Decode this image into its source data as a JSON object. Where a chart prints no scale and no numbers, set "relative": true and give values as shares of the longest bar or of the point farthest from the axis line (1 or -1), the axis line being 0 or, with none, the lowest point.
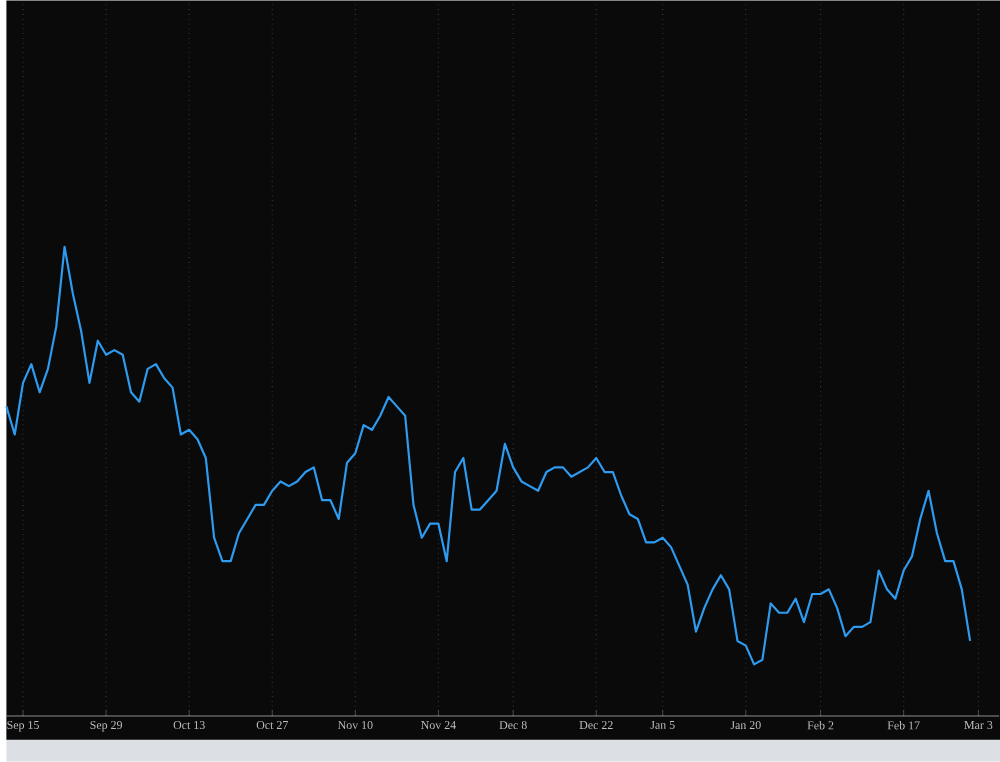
{
  "chart_data": {
    "type": "line",
    "relative": true,
    "color": "#2e9bf0",
    "grid": true,
    "categories": [
      null,
      null,
      "Sep 15",
      null,
      null,
      null,
      null,
      null,
      null,
      null,
      null,
      null,
      "Sep 29",
      null,
      null,
      null,
      null,
      null,
      null,
      null,
      null,
      null,
      "Oct 13",
      null,
      null,
      null,
      null,
      null,
      null,
      null,
      null,
      null,
      "Oct 27",
      null,
      null,
      null,
      null,
      null,
      null,
      null,
      null,
      null,
      "Nov 10",
      null,
      null,
      null,
      null,
      null,
      null,
      null,
      null,
      null,
      "Nov 24",
      null,
      null,
      null,
      null,
      null,
      null,
      null,
      null,
      "Dec 8",
      null,
      null,
      null,
      null,
      null,
      null,
      null,
      null,
      null,
      "Dec 22",
      null,
      null,
      null,
      null,
      null,
      null,
      null,
      "Jan 5",
      null,
      null,
      null,
      null,
      null,
      null,
      null,
      null,
      null,
      "Jan 20",
      null,
      null,
      null,
      null,
      null,
      null,
      null,
      null,
      "Feb 2",
      null,
      null,
      null,
      null,
      null,
      null,
      null,
      null,
      null,
      "Feb 17",
      null,
      null,
      null,
      null,
      null,
      null,
      null,
      null,
      "Mar 3"
    ],
    "values": [
      0.66,
      0.6,
      0.71,
      0.75,
      0.69,
      0.74,
      0.83,
      1,
      0.9,
      0.82,
      0.71,
      0.8,
      0.77,
      0.78,
      0.77,
      0.69,
      0.67,
      0.74,
      0.75,
      0.72,
      0.7,
      0.6,
      0.61,
      0.59,
      0.55,
      0.38,
      0.33,
      0.33,
      0.39,
      0.42,
      0.45,
      0.45,
      0.48,
      0.5,
      0.49,
      0.5,
      0.52,
      0.53,
      0.46,
      0.46,
      0.42,
      0.54,
      0.56,
      0.62,
      0.61,
      0.64,
      0.68,
      0.66,
      0.64,
      0.45,
      0.38,
      0.41,
      0.41,
      0.33,
      0.52,
      0.55,
      0.44,
      0.44,
      0.46,
      0.48,
      0.58,
      0.53,
      0.5,
      0.49,
      0.48,
      0.52,
      0.53,
      0.53,
      0.51,
      0.52,
      0.53,
      0.55,
      0.52,
      0.52,
      0.47,
      0.43,
      0.42,
      0.37,
      0.37,
      0.38,
      0.36,
      0.32,
      0.28,
      0.18,
      0.23,
      0.27,
      0.3,
      0.27,
      0.16,
      0.15,
      0.11,
      0.12,
      0.24,
      0.22,
      0.22,
      0.25,
      0.2,
      0.26,
      0.26,
      0.27,
      0.23,
      0.17,
      0.19,
      0.19,
      0.2,
      0.31,
      0.27,
      0.25,
      0.31,
      0.34,
      0.42,
      0.48,
      0.39,
      0.33,
      0.33,
      0.27,
      0.16,
      null
    ]
  }
}
